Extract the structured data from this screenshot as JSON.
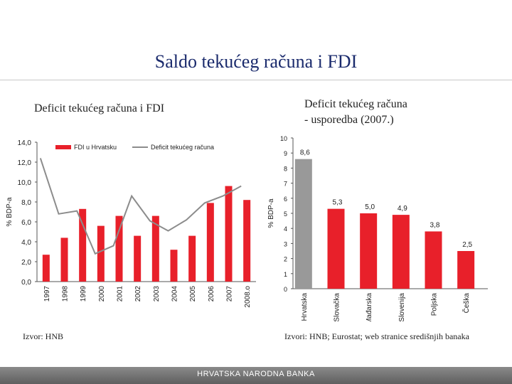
{
  "title": "Saldo tekućeg računa i FDI",
  "left_subtitle": "Deficit tekućeg računa i FDI",
  "right_subtitle_line1": "Deficit tekućeg računa",
  "right_subtitle_line2": "- usporedba (2007.)",
  "left_source": "Izvor: HNB",
  "right_source": "Izvori: HNB; Eurostat; web stranice središnjih banaka",
  "footer": "HRVATSKA NARODNA BANKA",
  "colors": {
    "red": "#e8202a",
    "gray_line": "#8c8c8c",
    "gray_bar": "#999999"
  },
  "chart_data": [
    {
      "type": "bar",
      "ylabel": "% BDP-a",
      "ylim": [
        0,
        14
      ],
      "yticks": [
        "0,0",
        "2,0",
        "4,0",
        "6,0",
        "8,0",
        "10,0",
        "12,0",
        "14,0"
      ],
      "categories": [
        "1997",
        "1998",
        "1999",
        "2000",
        "2001",
        "2002",
        "2003",
        "2004",
        "2005",
        "2006",
        "2007",
        "2008.o"
      ],
      "series": [
        {
          "name": "FDI u Hrvatsku",
          "type": "bar",
          "values": [
            2.7,
            4.4,
            7.3,
            5.6,
            6.6,
            4.6,
            6.6,
            3.2,
            4.6,
            7.9,
            9.6,
            8.2
          ]
        },
        {
          "name": "Deficit tekućeg računa",
          "type": "line",
          "values": [
            12.4,
            6.8,
            7.1,
            2.8,
            3.6,
            8.6,
            6.1,
            5.1,
            6.2,
            7.9,
            8.6,
            9.6
          ]
        }
      ],
      "legend": "top"
    },
    {
      "type": "bar",
      "ylabel": "% BDP-a",
      "ylim": [
        0,
        10
      ],
      "yticks": [
        "0",
        "1",
        "2",
        "3",
        "4",
        "5",
        "6",
        "7",
        "8",
        "9",
        "10"
      ],
      "categories": [
        "Hrvatska",
        "Slovačka",
        "Mađarska",
        "Slovenija",
        "Poljska",
        "Češka"
      ],
      "values": [
        8.6,
        5.3,
        5.0,
        4.9,
        3.8,
        2.5
      ],
      "labels": [
        "8,6",
        "5,3",
        "5,0",
        "4,9",
        "3,8",
        "2,5"
      ]
    }
  ]
}
